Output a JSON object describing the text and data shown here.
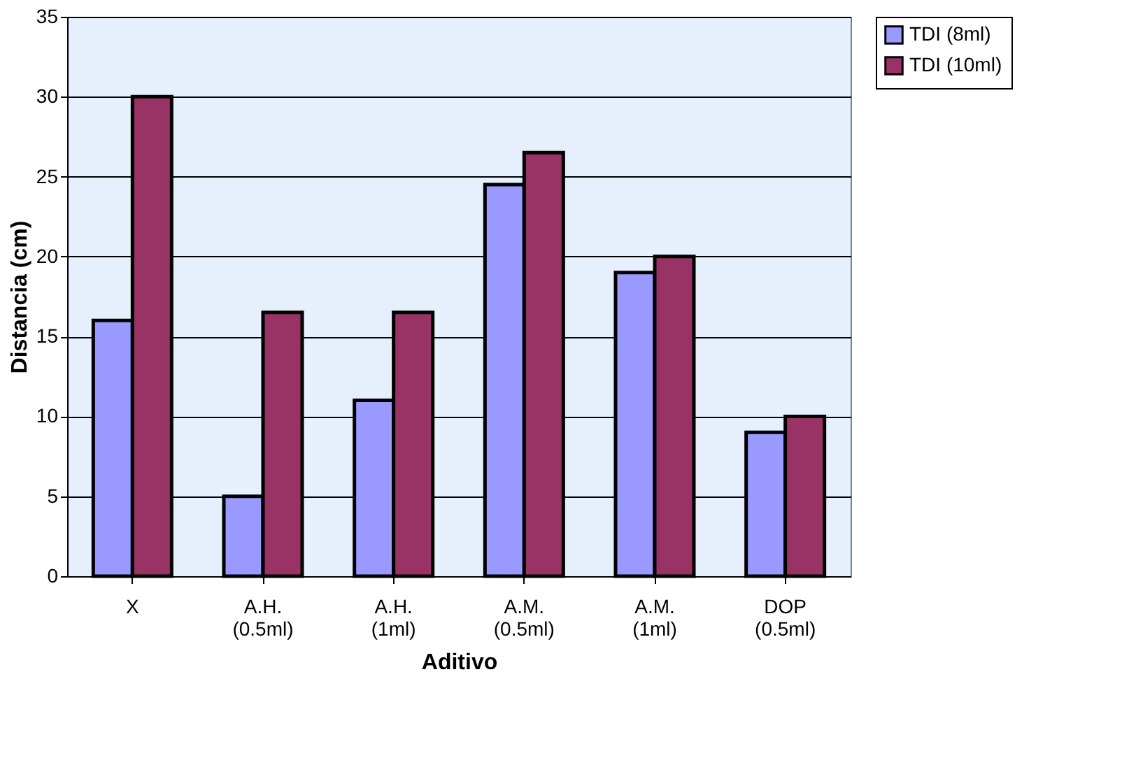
{
  "chart_data": {
    "type": "bar",
    "xlabel": "Aditivo",
    "ylabel": "Distancia (cm)",
    "categories": [
      "X",
      "A.H. (0.5ml)",
      "A.H. (1ml)",
      "A.M. (0.5ml)",
      "A.M. (1ml)",
      "DOP (0.5ml)"
    ],
    "series": [
      {
        "name": "TDI (8ml)",
        "color": "#9999ff",
        "values": [
          16,
          5,
          11,
          24.5,
          19,
          9
        ]
      },
      {
        "name": "TDI (10ml)",
        "color": "#993366",
        "values": [
          30,
          16.5,
          16.5,
          26.5,
          20,
          10
        ]
      }
    ],
    "ylim": [
      0,
      35
    ],
    "yticks": [
      0,
      5,
      10,
      15,
      20,
      25,
      30,
      35
    ],
    "grid": "y",
    "legend": "right"
  }
}
